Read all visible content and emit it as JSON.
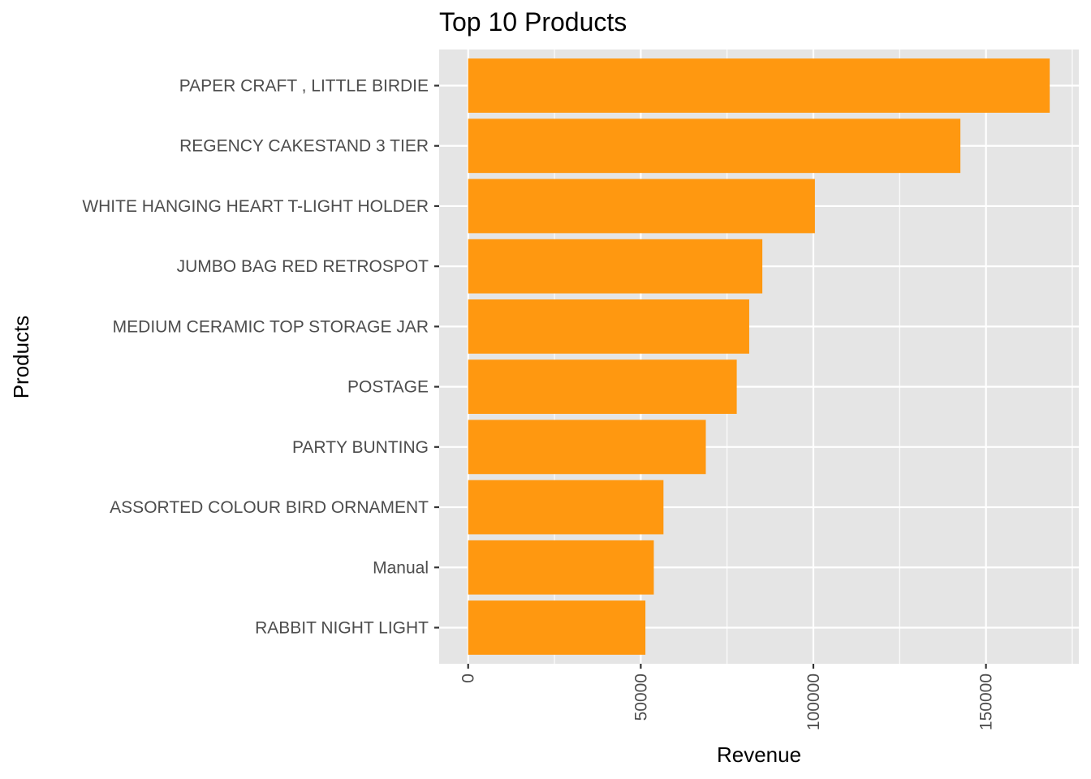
{
  "chart_data": {
    "type": "bar",
    "orientation": "horizontal",
    "title": "Top 10 Products",
    "xlabel": "Revenue",
    "ylabel": "Products",
    "categories": [
      "PAPER CRAFT , LITTLE BIRDIE",
      "REGENCY CAKESTAND 3 TIER",
      "WHITE HANGING HEART T-LIGHT HOLDER",
      "JUMBO BAG RED RETROSPOT",
      "MEDIUM CERAMIC TOP STORAGE JAR",
      "POSTAGE",
      "PARTY BUNTING",
      "ASSORTED COLOUR BIRD ORNAMENT",
      "Manual",
      "RABBIT NIGHT LIGHT"
    ],
    "values": [
      168470,
      142593,
      100448,
      85220,
      81417,
      77804,
      68844,
      56580,
      53780,
      51346
    ],
    "xlim": [
      -8400,
      176900
    ],
    "x_ticks": [
      0,
      50000,
      100000,
      150000
    ],
    "x_tick_labels": [
      "0",
      "50000",
      "100000",
      "150000"
    ],
    "grid": true,
    "bar_color": "#ff9810",
    "panel_color": "#e5e5e5",
    "grid_color": "#ffffff"
  }
}
